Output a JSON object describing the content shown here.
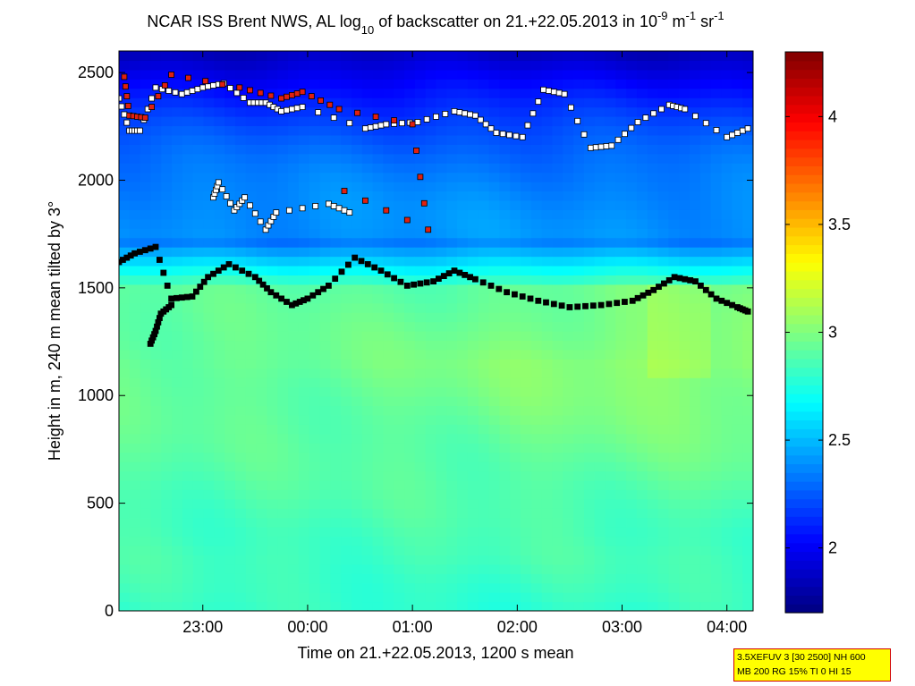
{
  "chart_data": {
    "type": "heatmap",
    "title": {
      "main": "NCAR ISS Brent NWS, AL log",
      "sub": "10",
      "mid": " of backscatter on 21.+22.05.2013 in 10",
      "exp1": "-9",
      "unit_m": " m",
      "exp2": "-1",
      "unit_sr": " sr",
      "exp3": "-1"
    },
    "xlabel": "Time on 21.+22.05.2013, 1200 s mean",
    "ylabel": "Height in m, 240 m mean tilted by 3°",
    "x_ticks": [
      {
        "label": "23:00",
        "hours": 23
      },
      {
        "label": "00:00",
        "hours": 24
      },
      {
        "label": "01:00",
        "hours": 25
      },
      {
        "label": "02:00",
        "hours": 26
      },
      {
        "label": "03:00",
        "hours": 27
      },
      {
        "label": "04:00",
        "hours": 28
      }
    ],
    "xlim_hours": [
      22.2,
      28.25
    ],
    "y_ticks": [
      0,
      500,
      1000,
      1500,
      2000,
      2500
    ],
    "ylim": [
      0,
      2600
    ],
    "colorbar": {
      "ticks": [
        2,
        2.5,
        3,
        3.5,
        4
      ],
      "range": [
        1.7,
        4.3
      ],
      "colormap": "jet"
    },
    "field_anchor_values": {
      "surface_layer": 2.85,
      "mixed_layer_max": 3.05,
      "upper_layer": 2.4,
      "top_min": 1.85
    },
    "layer_markers": [
      {
        "name": "mixing-layer-top",
        "color": "#000000",
        "points": [
          [
            22.2,
            1620
          ],
          [
            22.35,
            1660
          ],
          [
            22.55,
            1690
          ],
          [
            22.7,
            1450
          ],
          [
            22.9,
            1460
          ],
          [
            23.05,
            1550
          ],
          [
            23.25,
            1610
          ],
          [
            23.5,
            1550
          ],
          [
            23.65,
            1480
          ],
          [
            23.85,
            1420
          ],
          [
            24.0,
            1450
          ],
          [
            24.2,
            1510
          ],
          [
            24.45,
            1640
          ],
          [
            24.7,
            1580
          ],
          [
            24.95,
            1510
          ],
          [
            25.2,
            1530
          ],
          [
            25.4,
            1580
          ],
          [
            25.6,
            1540
          ],
          [
            25.9,
            1480
          ],
          [
            26.2,
            1440
          ],
          [
            26.5,
            1410
          ],
          [
            26.8,
            1420
          ],
          [
            27.1,
            1440
          ],
          [
            27.3,
            1490
          ],
          [
            27.5,
            1550
          ],
          [
            27.7,
            1530
          ],
          [
            27.9,
            1450
          ],
          [
            28.1,
            1410
          ],
          [
            28.2,
            1390
          ]
        ]
      },
      {
        "name": "low-layer-branch",
        "color": "#000000",
        "points": [
          [
            22.5,
            1240
          ],
          [
            22.55,
            1300
          ],
          [
            22.6,
            1380
          ],
          [
            22.7,
            1420
          ]
        ]
      },
      {
        "name": "residual-layer",
        "color": "#ffffff",
        "points": [
          [
            22.2,
            2380
          ],
          [
            22.3,
            2230
          ],
          [
            22.4,
            2230
          ],
          [
            22.55,
            2430
          ],
          [
            22.8,
            2400
          ],
          [
            23.0,
            2430
          ],
          [
            23.2,
            2450
          ],
          [
            23.45,
            2360
          ],
          [
            23.6,
            2360
          ],
          [
            23.75,
            2320
          ],
          [
            23.95,
            2340
          ],
          [
            24.55,
            2240
          ],
          [
            24.75,
            2260
          ],
          [
            25.05,
            2270
          ],
          [
            25.4,
            2320
          ],
          [
            25.6,
            2300
          ],
          [
            25.8,
            2220
          ],
          [
            26.05,
            2200
          ],
          [
            26.25,
            2420
          ],
          [
            26.45,
            2400
          ],
          [
            26.7,
            2150
          ],
          [
            26.9,
            2160
          ],
          [
            27.15,
            2270
          ],
          [
            27.45,
            2350
          ],
          [
            27.6,
            2330
          ],
          [
            28.0,
            2200
          ],
          [
            28.2,
            2240
          ]
        ]
      },
      {
        "name": "upper-scattered",
        "color": "#ffffff",
        "points": [
          [
            23.1,
            1920
          ],
          [
            23.15,
            1990
          ],
          [
            23.3,
            1860
          ],
          [
            23.4,
            1920
          ],
          [
            23.6,
            1770
          ],
          [
            23.7,
            1850
          ],
          [
            24.2,
            1890
          ],
          [
            24.4,
            1850
          ]
        ]
      },
      {
        "name": "high-values",
        "color": "#e02010",
        "points": [
          [
            22.25,
            2480
          ],
          [
            22.3,
            2300
          ],
          [
            22.45,
            2290
          ],
          [
            22.7,
            2490
          ],
          [
            23.35,
            2430
          ],
          [
            23.75,
            2380
          ],
          [
            23.95,
            2410
          ],
          [
            24.3,
            2330
          ],
          [
            25.0,
            2260
          ],
          [
            25.15,
            1770
          ],
          [
            24.35,
            1950
          ]
        ]
      }
    ]
  },
  "info_box": {
    "line1": "3.5XEFUV 3 [30 2500] NH 600",
    "line2": "MB 200 RG 15% TI 0 HI 15"
  }
}
